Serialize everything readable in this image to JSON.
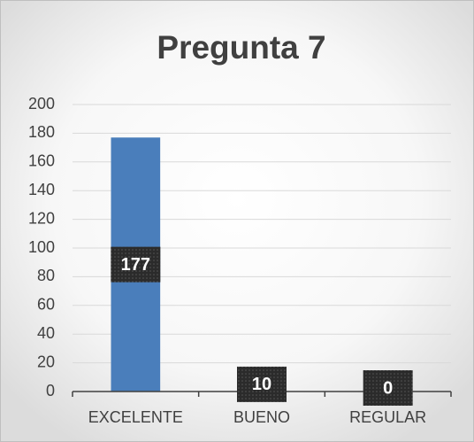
{
  "chart_data": {
    "type": "bar",
    "title": "Pregunta 7",
    "categories": [
      "EXCELENTE",
      "BUENO",
      "REGULAR"
    ],
    "values": [
      177,
      10,
      0
    ],
    "color": "#4a7ebb",
    "ylim": [
      0,
      200
    ],
    "yticks": [
      0,
      20,
      40,
      60,
      80,
      100,
      120,
      140,
      160,
      180,
      200
    ],
    "grid": true
  }
}
